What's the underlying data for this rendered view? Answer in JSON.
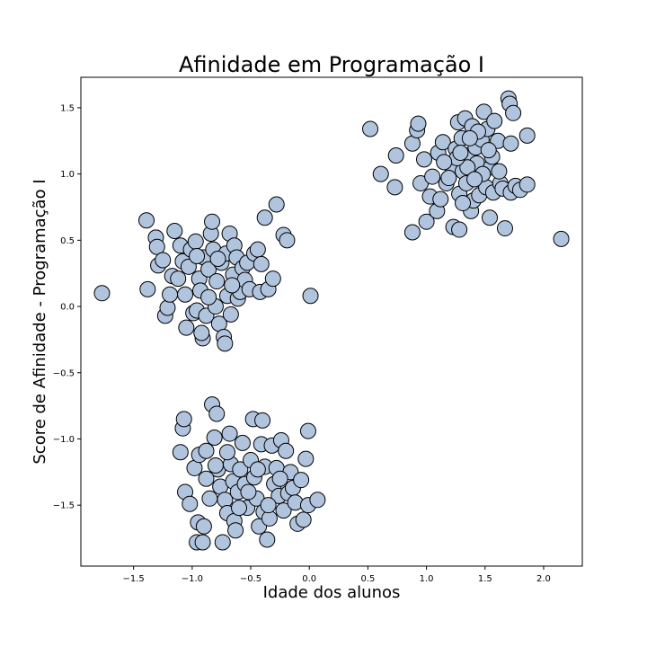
{
  "chart_data": {
    "type": "scatter",
    "title": "Afinidade em Programação I",
    "xlabel": "Idade dos alunos",
    "ylabel": "Score de Afinidade - Programação I",
    "xlim": [
      -1.95,
      2.33
    ],
    "ylim": [
      -1.96,
      1.73
    ],
    "xticks": [
      -1.5,
      -1.0,
      -0.5,
      0.0,
      0.5,
      1.0,
      1.5,
      2.0
    ],
    "xtick_labels": [
      "−1.5",
      "−1.0",
      "−0.5",
      "0.0",
      "0.5",
      "1.0",
      "1.5",
      "2.0"
    ],
    "yticks": [
      -1.5,
      -1.0,
      -0.5,
      0.0,
      0.5,
      1.0,
      1.5
    ],
    "ytick_labels": [
      "−1.5",
      "−1.0",
      "−0.5",
      "0.0",
      "0.5",
      "1.0",
      "1.5"
    ],
    "grid": false,
    "marker_color": "#b0c4de",
    "marker_edge": "#000000",
    "series": [
      {
        "points": [
          [
            0.52,
            1.34
          ],
          [
            0.61,
            1.0
          ],
          [
            0.73,
            0.9
          ],
          [
            0.74,
            1.14
          ],
          [
            0.88,
            1.23
          ],
          [
            0.88,
            0.56
          ],
          [
            0.92,
            1.33
          ],
          [
            0.93,
            1.38
          ],
          [
            0.95,
            0.93
          ],
          [
            0.98,
            1.11
          ],
          [
            1.0,
            0.64
          ],
          [
            1.03,
            0.83
          ],
          [
            1.05,
            0.98
          ],
          [
            1.09,
            0.72
          ],
          [
            1.1,
            1.16
          ],
          [
            1.12,
            0.81
          ],
          [
            1.14,
            1.24
          ],
          [
            1.17,
            0.93
          ],
          [
            1.22,
            1.05
          ],
          [
            1.23,
            0.6
          ],
          [
            1.25,
            1.19
          ],
          [
            1.27,
            1.39
          ],
          [
            1.28,
            0.85
          ],
          [
            1.28,
            0.58
          ],
          [
            1.3,
            1.27
          ],
          [
            1.31,
            1.02
          ],
          [
            1.33,
            1.42
          ],
          [
            1.34,
            0.93
          ],
          [
            1.36,
            1.14
          ],
          [
            1.38,
            0.72
          ],
          [
            1.39,
            1.36
          ],
          [
            1.4,
            0.8
          ],
          [
            1.42,
            1.2
          ],
          [
            1.43,
            1.08
          ],
          [
            1.45,
            0.84
          ],
          [
            1.47,
            1.26
          ],
          [
            1.49,
            1.47
          ],
          [
            1.51,
            0.9
          ],
          [
            1.52,
            1.34
          ],
          [
            1.54,
            0.67
          ],
          [
            1.55,
            1.05
          ],
          [
            1.57,
            0.86
          ],
          [
            1.58,
            1.4
          ],
          [
            1.61,
            1.25
          ],
          [
            1.63,
            0.93
          ],
          [
            1.65,
            0.89
          ],
          [
            1.67,
            0.59
          ],
          [
            1.7,
            1.57
          ],
          [
            1.71,
            1.53
          ],
          [
            1.72,
            0.86
          ],
          [
            1.74,
            1.46
          ],
          [
            1.76,
            0.91
          ],
          [
            1.8,
            0.88
          ],
          [
            1.86,
            1.29
          ],
          [
            1.86,
            0.92
          ],
          [
            1.72,
            1.23
          ],
          [
            1.48,
            1.0
          ],
          [
            1.35,
            1.05
          ],
          [
            1.26,
            1.12
          ],
          [
            1.19,
            0.97
          ],
          [
            1.41,
            0.96
          ],
          [
            1.56,
            1.13
          ],
          [
            2.15,
            0.51
          ],
          [
            1.29,
            1.16
          ],
          [
            1.44,
            1.32
          ],
          [
            1.31,
            0.78
          ],
          [
            1.15,
            1.09
          ],
          [
            1.37,
            1.27
          ],
          [
            1.62,
            1.02
          ],
          [
            1.53,
            1.18
          ]
        ]
      },
      {
        "points": [
          [
            -1.77,
            0.1
          ],
          [
            -1.39,
            0.65
          ],
          [
            -1.38,
            0.13
          ],
          [
            -1.31,
            0.52
          ],
          [
            -1.3,
            0.45
          ],
          [
            -1.29,
            0.31
          ],
          [
            -1.25,
            0.35
          ],
          [
            -1.23,
            -0.07
          ],
          [
            -1.21,
            -0.01
          ],
          [
            -1.19,
            0.09
          ],
          [
            -1.17,
            0.23
          ],
          [
            -1.15,
            0.57
          ],
          [
            -1.12,
            0.21
          ],
          [
            -1.1,
            0.46
          ],
          [
            -1.08,
            0.34
          ],
          [
            -1.06,
            0.09
          ],
          [
            -1.05,
            -0.16
          ],
          [
            -1.03,
            0.3
          ],
          [
            -1.01,
            0.43
          ],
          [
            -0.99,
            -0.05
          ],
          [
            -0.97,
            0.49
          ],
          [
            -0.96,
            -0.03
          ],
          [
            -0.94,
            0.21
          ],
          [
            -0.93,
            0.12
          ],
          [
            -0.91,
            -0.24
          ],
          [
            -0.9,
            0.37
          ],
          [
            -0.88,
            -0.07
          ],
          [
            -0.86,
            0.28
          ],
          [
            -0.84,
            0.55
          ],
          [
            -0.83,
            0.64
          ],
          [
            -0.82,
            0.43
          ],
          [
            -0.8,
            0.0
          ],
          [
            -0.79,
            0.19
          ],
          [
            -0.77,
            -0.13
          ],
          [
            -0.75,
            0.33
          ],
          [
            -0.73,
            -0.23
          ],
          [
            -0.71,
            0.4
          ],
          [
            -0.7,
            0.08
          ],
          [
            -0.68,
            0.55
          ],
          [
            -0.67,
            -0.06
          ],
          [
            -0.65,
            0.24
          ],
          [
            -0.64,
            0.46
          ],
          [
            -0.62,
            0.37
          ],
          [
            -0.61,
            0.06
          ],
          [
            -0.59,
            0.11
          ],
          [
            -0.57,
            0.29
          ],
          [
            -0.55,
            0.2
          ],
          [
            -0.53,
            0.33
          ],
          [
            -0.51,
            0.13
          ],
          [
            -0.47,
            0.4
          ],
          [
            -0.44,
            0.43
          ],
          [
            -0.42,
            0.11
          ],
          [
            -0.41,
            0.32
          ],
          [
            -0.38,
            0.67
          ],
          [
            -0.35,
            0.13
          ],
          [
            -0.31,
            0.21
          ],
          [
            -0.28,
            0.77
          ],
          [
            -0.22,
            0.54
          ],
          [
            -0.19,
            0.5
          ],
          [
            0.01,
            0.08
          ],
          [
            -0.72,
            -0.28
          ],
          [
            -0.92,
            -0.2
          ],
          [
            -0.86,
            0.07
          ],
          [
            -0.66,
            0.16
          ],
          [
            -0.96,
            0.38
          ],
          [
            -0.78,
            0.36
          ]
        ]
      },
      {
        "points": [
          [
            -1.1,
            -1.1
          ],
          [
            -1.08,
            -0.92
          ],
          [
            -1.07,
            -0.85
          ],
          [
            -1.06,
            -1.4
          ],
          [
            -1.02,
            -1.49
          ],
          [
            -0.98,
            -1.22
          ],
          [
            -0.96,
            -1.78
          ],
          [
            -0.95,
            -1.63
          ],
          [
            -0.94,
            -1.12
          ],
          [
            -0.91,
            -1.78
          ],
          [
            -0.9,
            -1.66
          ],
          [
            -0.88,
            -1.09
          ],
          [
            -0.85,
            -1.45
          ],
          [
            -0.83,
            -0.74
          ],
          [
            -0.81,
            -0.99
          ],
          [
            -0.79,
            -0.81
          ],
          [
            -0.78,
            -1.23
          ],
          [
            -0.76,
            -1.36
          ],
          [
            -0.74,
            -1.78
          ],
          [
            -0.72,
            -1.46
          ],
          [
            -0.7,
            -1.56
          ],
          [
            -0.68,
            -0.96
          ],
          [
            -0.67,
            -1.19
          ],
          [
            -0.65,
            -1.32
          ],
          [
            -0.64,
            -1.62
          ],
          [
            -0.63,
            -1.69
          ],
          [
            -0.61,
            -1.4
          ],
          [
            -0.59,
            -1.23
          ],
          [
            -0.57,
            -1.03
          ],
          [
            -0.55,
            -1.34
          ],
          [
            -0.53,
            -1.52
          ],
          [
            -0.5,
            -1.16
          ],
          [
            -0.48,
            -0.85
          ],
          [
            -0.47,
            -1.29
          ],
          [
            -0.45,
            -1.45
          ],
          [
            -0.43,
            -1.66
          ],
          [
            -0.41,
            -1.04
          ],
          [
            -0.4,
            -0.86
          ],
          [
            -0.39,
            -1.55
          ],
          [
            -0.38,
            -1.21
          ],
          [
            -0.36,
            -1.76
          ],
          [
            -0.34,
            -1.6
          ],
          [
            -0.32,
            -1.05
          ],
          [
            -0.3,
            -1.34
          ],
          [
            -0.28,
            -1.22
          ],
          [
            -0.26,
            -1.43
          ],
          [
            -0.24,
            -1.01
          ],
          [
            -0.22,
            -1.54
          ],
          [
            -0.2,
            -1.09
          ],
          [
            -0.18,
            -1.41
          ],
          [
            -0.16,
            -1.25
          ],
          [
            -0.14,
            -1.37
          ],
          [
            -0.12,
            -1.48
          ],
          [
            -0.1,
            -1.64
          ],
          [
            -0.07,
            -1.31
          ],
          [
            -0.05,
            -1.61
          ],
          [
            -0.03,
            -1.15
          ],
          [
            -0.01,
            -0.94
          ],
          [
            -0.01,
            -1.5
          ],
          [
            0.07,
            -1.46
          ],
          [
            -0.88,
            -1.3
          ],
          [
            -0.7,
            -1.1
          ],
          [
            -0.52,
            -1.4
          ],
          [
            -0.44,
            -1.23
          ],
          [
            -0.6,
            -1.52
          ],
          [
            -0.8,
            -1.2
          ],
          [
            -0.35,
            -1.5
          ],
          [
            -0.25,
            -1.3
          ]
        ]
      }
    ]
  }
}
